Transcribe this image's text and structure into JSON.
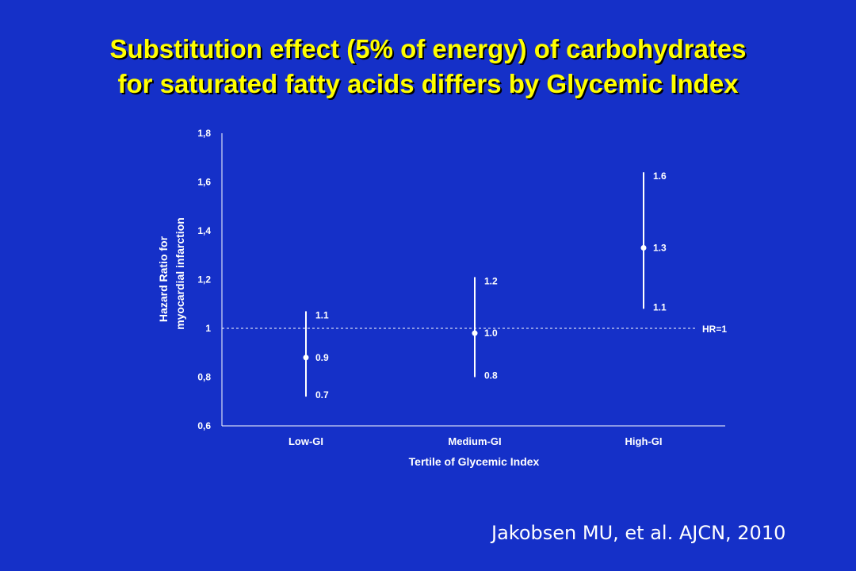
{
  "slide": {
    "title_line1": "Substitution effect (5% of energy) of carbohydrates",
    "title_line2": "for saturated fatty acids differs by Glycemic Index",
    "citation": "Jakobsen MU, et al. AJCN, 2010"
  },
  "colors": {
    "background": "#1530c8",
    "title": "#ffff00",
    "marks": "#ffffff"
  },
  "chart_data": {
    "type": "scatter",
    "title": "",
    "xlabel": "Tertile of Glycemic Index",
    "ylabel_line1": "Hazard Ratio for",
    "ylabel_line2": "myocardial infarction",
    "ylim": [
      0.6,
      1.8
    ],
    "y_ticks": [
      {
        "value": 0.6,
        "label": "0,6"
      },
      {
        "value": 0.8,
        "label": "0,8"
      },
      {
        "value": 1.0,
        "label": "1"
      },
      {
        "value": 1.2,
        "label": "1,2"
      },
      {
        "value": 1.4,
        "label": "1,4"
      },
      {
        "value": 1.6,
        "label": "1,6"
      },
      {
        "value": 1.8,
        "label": "1,8"
      }
    ],
    "categories": [
      "Low-GI",
      "Medium-GI",
      "High-GI"
    ],
    "points": [
      {
        "category": "Low-GI",
        "hr": 0.88,
        "ci_low": 0.72,
        "ci_high": 1.07,
        "hr_label": "0.9",
        "low_label": "0.7",
        "high_label": "1.1"
      },
      {
        "category": "Medium-GI",
        "hr": 0.98,
        "ci_low": 0.8,
        "ci_high": 1.21,
        "hr_label": "1.0",
        "low_label": "0.8",
        "high_label": "1.2"
      },
      {
        "category": "High-GI",
        "hr": 1.33,
        "ci_low": 1.08,
        "ci_high": 1.64,
        "hr_label": "1.3",
        "low_label": "1.1",
        "high_label": "1.6"
      }
    ],
    "reference_line": {
      "value": 1.0,
      "label": "HR=1",
      "style": "dashed"
    },
    "grid": false,
    "legend": "none"
  }
}
